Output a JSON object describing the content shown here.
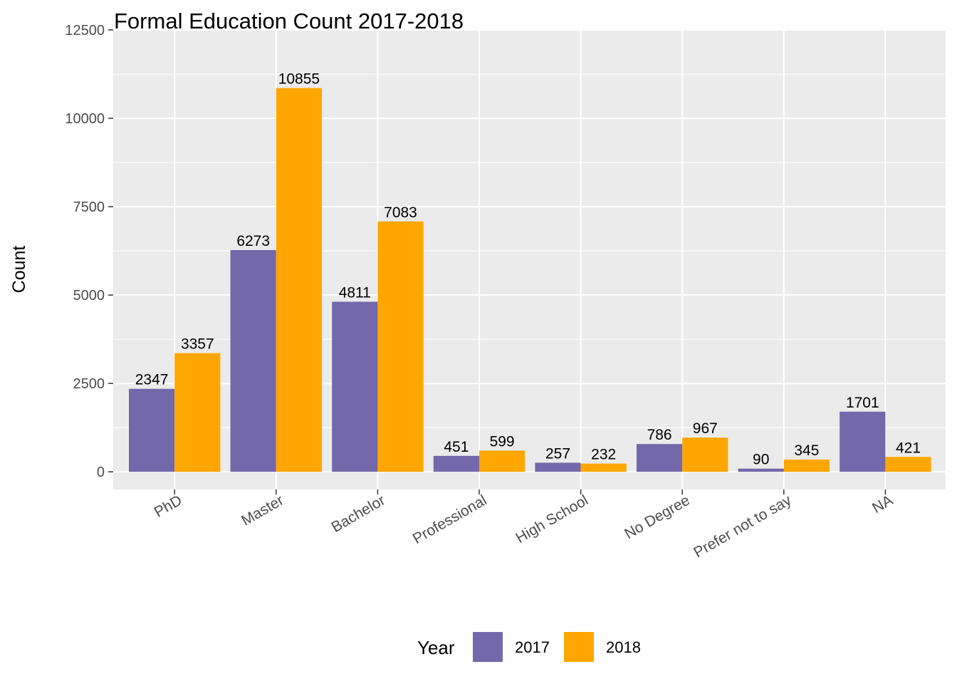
{
  "colors": {
    "panel_bg": "#EBEBEB",
    "grid": "#FFFFFF",
    "axis_text": "#4D4D4D",
    "tick": "#333333",
    "label_text": "#000000"
  },
  "chart_data": {
    "type": "bar",
    "title": "Formal Education Count 2017-2018",
    "xlabel": "",
    "ylabel": "Count",
    "ylim": [
      -500,
      12500
    ],
    "yticks": [
      0,
      2500,
      5000,
      7500,
      10000,
      12500
    ],
    "grid": true,
    "legend_position": "bottom",
    "legend_title": "Year",
    "categories": [
      "PhD",
      "Master",
      "Bachelor",
      "Professional",
      "High School",
      "No Degree",
      "Prefer not to say",
      "NA"
    ],
    "series": [
      {
        "name": "2017",
        "color": "#7268AA",
        "values": [
          2347,
          6273,
          4811,
          451,
          257,
          786,
          90,
          1701
        ]
      },
      {
        "name": "2018",
        "color": "#FFA600",
        "values": [
          3357,
          10855,
          7083,
          599,
          232,
          967,
          345,
          421
        ]
      }
    ]
  }
}
